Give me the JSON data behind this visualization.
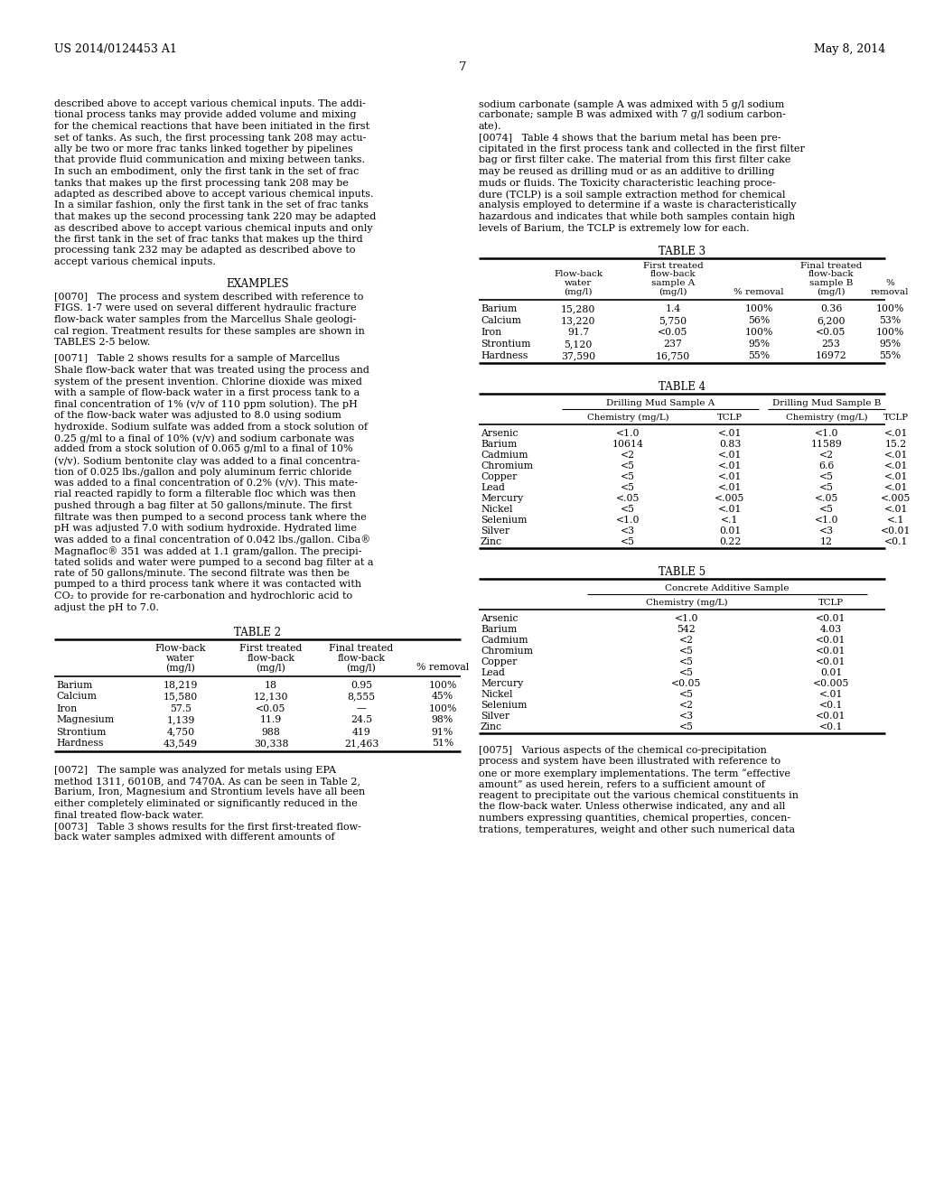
{
  "page_header_left": "US 2014/0124453 A1",
  "page_header_right": "May 8, 2014",
  "page_number": "7",
  "bg_color": "#ffffff",
  "text_color": "#000000",
  "table2_title": "TABLE 2",
  "table2_rows": [
    [
      "Barium",
      "18,219",
      "18",
      "0.95",
      "100%"
    ],
    [
      "Calcium",
      "15,580",
      "12,130",
      "8,555",
      "45%"
    ],
    [
      "Iron",
      "57.5",
      "<0.05",
      "—",
      "100%"
    ],
    [
      "Magnesium",
      "1,139",
      "11.9",
      "24.5",
      "98%"
    ],
    [
      "Strontium",
      "4,750",
      "988",
      "419",
      "91%"
    ],
    [
      "Hardness",
      "43,549",
      "30,338",
      "21,463",
      "51%"
    ]
  ],
  "table3_title": "TABLE 3",
  "table3_rows": [
    [
      "Barium",
      "15,280",
      "1.4",
      "100%",
      "0.36",
      "100%"
    ],
    [
      "Calcium",
      "13,220",
      "5,750",
      "56%",
      "6,200",
      "53%"
    ],
    [
      "Iron",
      "91.7",
      "<0.05",
      "100%",
      "<0.05",
      "100%"
    ],
    [
      "Strontium",
      "5,120",
      "237",
      "95%",
      "253",
      "95%"
    ],
    [
      "Hardness",
      "37,590",
      "16,750",
      "55%",
      "16972",
      "55%"
    ]
  ],
  "table4_title": "TABLE 4",
  "table4_header_groups": [
    "Drilling Mud Sample A",
    "Drilling Mud Sample B"
  ],
  "table4_subheaders": [
    "Chemistry (mg/L)",
    "TCLP",
    "Chemistry (mg/L)",
    "TCLP"
  ],
  "table4_rows": [
    [
      "Arsenic",
      "<1.0",
      "<.01",
      "<1.0",
      "<.01"
    ],
    [
      "Barium",
      "10614",
      "0.83",
      "11589",
      "15.2"
    ],
    [
      "Cadmium",
      "<2",
      "<.01",
      "<2",
      "<.01"
    ],
    [
      "Chromium",
      "<5",
      "<.01",
      "6.6",
      "<.01"
    ],
    [
      "Copper",
      "<5",
      "<.01",
      "<5",
      "<.01"
    ],
    [
      "Lead",
      "<5",
      "<.01",
      "<5",
      "<.01"
    ],
    [
      "Mercury",
      "<.05",
      "<.005",
      "<.05",
      "<.005"
    ],
    [
      "Nickel",
      "<5",
      "<.01",
      "<5",
      "<.01"
    ],
    [
      "Selenium",
      "<1.0",
      "<.1",
      "<1.0",
      "<.1"
    ],
    [
      "Silver",
      "<3",
      "0.01",
      "<3",
      "<0.01"
    ],
    [
      "Zinc",
      "<5",
      "0.22",
      "12",
      "<0.1"
    ]
  ],
  "table5_title": "TABLE 5",
  "table5_header_group": "Concrete Additive Sample",
  "table5_subheaders": [
    "Chemistry (mg/L)",
    "TCLP"
  ],
  "table5_rows": [
    [
      "Arsenic",
      "<1.0",
      "<0.01"
    ],
    [
      "Barium",
      "542",
      "4.03"
    ],
    [
      "Cadmium",
      "<2",
      "<0.01"
    ],
    [
      "Chromium",
      "<5",
      "<0.01"
    ],
    [
      "Copper",
      "<5",
      "<0.01"
    ],
    [
      "Lead",
      "<5",
      "0.01"
    ],
    [
      "Mercury",
      "<0.05",
      "<0.005"
    ],
    [
      "Nickel",
      "<5",
      "<.01"
    ],
    [
      "Selenium",
      "<2",
      "<0.1"
    ],
    [
      "Silver",
      "<3",
      "<0.01"
    ],
    [
      "Zinc",
      "<5",
      "<0.1"
    ]
  ]
}
